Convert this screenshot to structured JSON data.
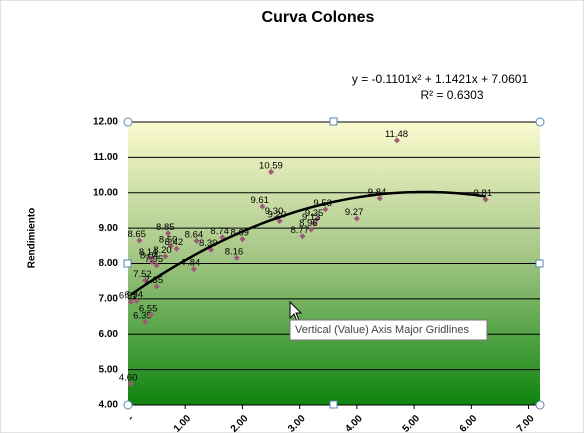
{
  "chart_data": {
    "type": "scatter",
    "title": "Curva Colones",
    "y_label": "Rendimiento",
    "xlim": [
      0,
      7.2
    ],
    "ylim": [
      4,
      12
    ],
    "xticks": [
      {
        "value": 0,
        "label": "-"
      },
      {
        "value": 1,
        "label": "1.00"
      },
      {
        "value": 2,
        "label": "2.00"
      },
      {
        "value": 3,
        "label": "3.00"
      },
      {
        "value": 4,
        "label": "4.00"
      },
      {
        "value": 5,
        "label": "5.00"
      },
      {
        "value": 6,
        "label": "6.00"
      },
      {
        "value": 7,
        "label": "7.00"
      }
    ],
    "yticks": [
      {
        "value": 4,
        "label": "4.00"
      },
      {
        "value": 5,
        "label": "5.00"
      },
      {
        "value": 6,
        "label": "6.00"
      },
      {
        "value": 7,
        "label": "7.00"
      },
      {
        "value": 8,
        "label": "8.00"
      },
      {
        "value": 9,
        "label": "9.00"
      },
      {
        "value": 10,
        "label": "10.00"
      },
      {
        "value": 11,
        "label": "11.00"
      },
      {
        "value": 12,
        "label": "12.00"
      }
    ],
    "grid": true,
    "color": "#a0587a",
    "x": [
      0.05,
      0.05,
      0.15,
      0.3,
      0.4,
      0.3,
      0.5,
      0.7,
      0.2,
      0.75,
      0.85,
      0.65,
      0.4,
      0.42,
      0.5,
      1.15,
      1.2,
      1.45,
      1.65,
      2.0,
      1.9,
      2.35,
      2.5,
      2.6,
      2.65,
      3.05,
      3.3,
      3.25,
      3.2,
      3.45,
      4.0,
      4.4,
      4.7,
      6.25
    ],
    "values": [
      4.6,
      6.91,
      6.94,
      6.35,
      6.55,
      7.52,
      7.35,
      8.85,
      8.65,
      8.5,
      8.42,
      8.2,
      8.14,
      8.04,
      7.95,
      7.84,
      8.64,
      8.39,
      8.74,
      8.69,
      8.16,
      9.61,
      10.59,
      9.3,
      9.2,
      8.77,
      9.25,
      9.13,
      8.96,
      9.53,
      9.27,
      9.84,
      11.48,
      9.81
    ],
    "value_labels": [
      "4.60",
      "6.91",
      "6.94",
      "6.35",
      "6.55",
      "7.52",
      "7.35",
      "8.85",
      "8.65",
      "8.50",
      "8.42",
      "8.20",
      "8.14",
      "8.04",
      "7.95",
      "7.84",
      "8.64",
      "8.39",
      "8.74",
      "8.69",
      "8.16",
      "9.61",
      "10.59",
      "9.30",
      "9.20",
      "8.77",
      "9.25",
      "9.13",
      "8.96",
      "9.53",
      "9.27",
      "9.84",
      "11.48",
      "9.81"
    ],
    "trendline": {
      "coefficients": [
        -0.1101,
        1.1421,
        7.0601
      ],
      "equation": "y = -0.1101x² + 1.1421x + 7.0601",
      "r2": "R² = 0.6303"
    },
    "tooltip": "Vertical (Value) Axis Major Gridlines"
  }
}
